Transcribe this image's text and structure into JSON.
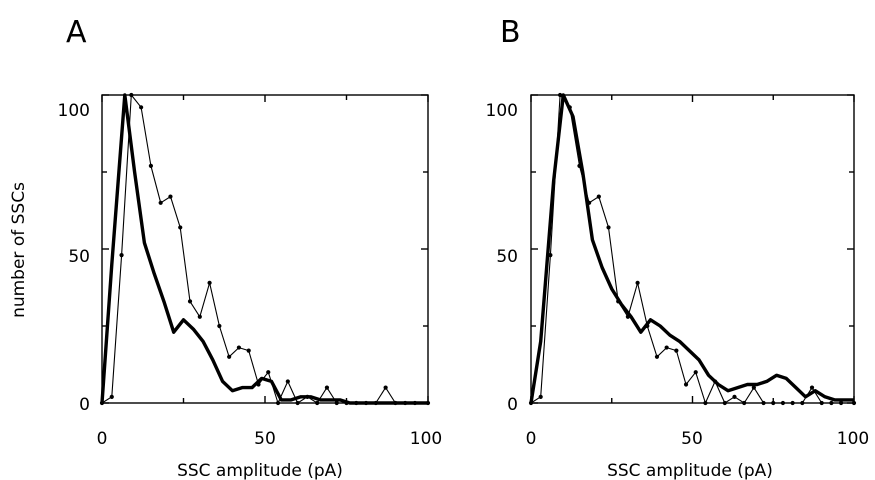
{
  "chart_data": [
    {
      "type": "line",
      "panel_label": "A",
      "xlabel": "SSC amplitude (pA)",
      "ylabel": "number of SSCs",
      "xlim": [
        0,
        100
      ],
      "ylim": [
        0,
        100
      ],
      "x_ticks": [
        "0",
        "50",
        "100"
      ],
      "y_ticks": [
        "0",
        "50",
        "100"
      ],
      "grid": false,
      "series": [
        {
          "style": "thick",
          "x": [
            0,
            3,
            7,
            10,
            13,
            16,
            19,
            22,
            25,
            28,
            31,
            34,
            37,
            40,
            43,
            46,
            49,
            52,
            55,
            58,
            61,
            64,
            67,
            70,
            73,
            76,
            79,
            82,
            85,
            88,
            91,
            94,
            97,
            100
          ],
          "values": [
            0,
            45,
            100,
            75,
            52,
            42,
            33,
            23,
            27,
            24,
            20,
            14,
            7,
            4,
            5,
            5,
            8,
            7,
            1,
            1,
            2,
            2,
            1,
            1,
            1,
            0,
            0,
            0,
            0,
            0,
            0,
            0,
            0,
            0
          ]
        },
        {
          "style": "thin-dotted",
          "x": [
            0,
            3,
            6,
            9,
            12,
            15,
            18,
            21,
            24,
            27,
            30,
            33,
            36,
            39,
            42,
            45,
            48,
            51,
            54,
            57,
            60,
            63,
            66,
            69,
            72,
            75,
            78,
            81,
            84,
            87,
            90,
            93,
            96,
            100
          ],
          "values": [
            0,
            2,
            48,
            100,
            96,
            77,
            65,
            67,
            57,
            33,
            28,
            39,
            25,
            15,
            18,
            17,
            6,
            10,
            0,
            7,
            0,
            2,
            0,
            5,
            0,
            0,
            0,
            0,
            0,
            5,
            0,
            0,
            0,
            0
          ]
        }
      ]
    },
    {
      "type": "line",
      "panel_label": "B",
      "xlabel": "SSC amplitude (pA)",
      "ylabel": "",
      "xlim": [
        0,
        100
      ],
      "ylim": [
        0,
        100
      ],
      "x_ticks": [
        "0",
        "50",
        "100"
      ],
      "y_ticks": [
        "0",
        "50",
        "100"
      ],
      "grid": false,
      "series": [
        {
          "style": "thick",
          "x": [
            0,
            3,
            7,
            10,
            13,
            16,
            19,
            22,
            25,
            28,
            31,
            34,
            37,
            40,
            43,
            46,
            49,
            52,
            55,
            58,
            61,
            64,
            67,
            70,
            73,
            76,
            79,
            82,
            85,
            88,
            91,
            94,
            97,
            100
          ],
          "values": [
            0,
            20,
            72,
            100,
            93,
            75,
            53,
            44,
            37,
            32,
            28,
            23,
            27,
            25,
            22,
            20,
            17,
            14,
            9,
            6,
            4,
            5,
            6,
            6,
            7,
            9,
            8,
            5,
            2,
            4,
            2,
            1,
            1,
            1
          ]
        },
        {
          "style": "thin-dotted",
          "x": [
            0,
            3,
            6,
            9,
            12,
            15,
            18,
            21,
            24,
            27,
            30,
            33,
            36,
            39,
            42,
            45,
            48,
            51,
            54,
            57,
            60,
            63,
            66,
            69,
            72,
            75,
            78,
            81,
            84,
            87,
            90,
            93,
            96,
            100
          ],
          "values": [
            0,
            2,
            48,
            100,
            96,
            77,
            65,
            67,
            57,
            33,
            28,
            39,
            25,
            15,
            18,
            17,
            6,
            10,
            0,
            7,
            0,
            2,
            0,
            5,
            0,
            0,
            0,
            0,
            0,
            5,
            0,
            0,
            0,
            0
          ]
        }
      ]
    }
  ]
}
